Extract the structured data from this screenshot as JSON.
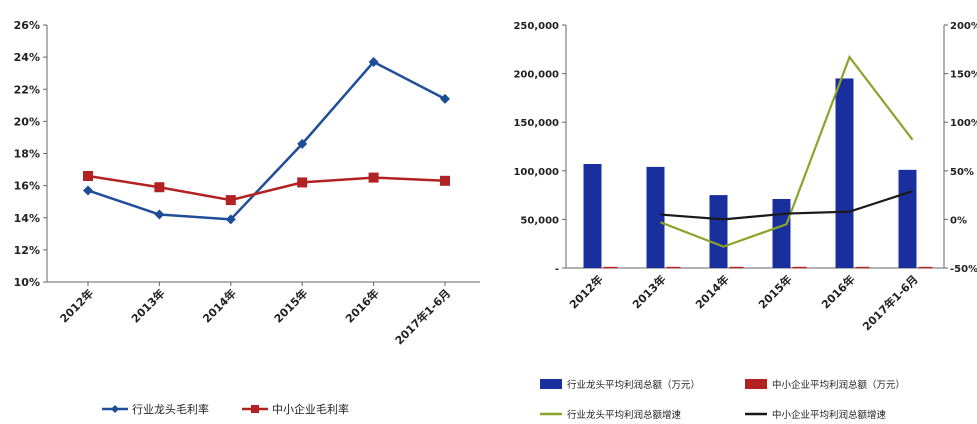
{
  "chart_data": [
    {
      "type": "line",
      "categories": [
        "2012年",
        "2013年",
        "2014年",
        "2015年",
        "2016年",
        "2017年1-6月"
      ],
      "series": [
        {
          "name": "行业龙头毛利率",
          "values": [
            15.7,
            14.2,
            13.9,
            18.6,
            23.7,
            21.4
          ],
          "color": "#1f4e99",
          "marker": "diamond"
        },
        {
          "name": "中小企业毛利率",
          "values": [
            16.6,
            15.9,
            15.1,
            16.2,
            16.5,
            16.3
          ],
          "color": "#b22222",
          "marker": "square"
        }
      ],
      "ylim": [
        10,
        26
      ],
      "yticks": [
        "10%",
        "12%",
        "14%",
        "16%",
        "18%",
        "20%",
        "22%",
        "24%",
        "26%"
      ],
      "grid": false,
      "legend": "bottom"
    },
    {
      "type": "bar+line",
      "categories": [
        "2012年",
        "2013年",
        "2014年",
        "2015年",
        "2016年",
        "2017年1-6月"
      ],
      "bar_series": [
        {
          "name": "行业龙头平均利润总额（万元）",
          "values": [
            107000,
            104000,
            75000,
            71000,
            195000,
            101000
          ],
          "color": "#1a2f9e"
        },
        {
          "name": "中小企业平均利润总额（万元）",
          "values": [
            1200,
            1200,
            1200,
            1200,
            1200,
            1200
          ],
          "color": "#b22222"
        }
      ],
      "line_series": [
        {
          "name": "行业龙头平均利润总额增速",
          "x_indices": [
            1,
            2,
            3,
            4,
            5
          ],
          "values": [
            -3,
            -28,
            -5,
            167,
            82
          ],
          "color": "#8aa42a"
        },
        {
          "name": "中小企业平均利润总额增速",
          "x_indices": [
            1,
            2,
            3,
            4,
            5
          ],
          "values": [
            5,
            0,
            6,
            8,
            29
          ],
          "color": "#1a1a1a"
        }
      ],
      "ylim_left": [
        0,
        250000
      ],
      "yticks_left": [
        "-",
        "50,000",
        "100,000",
        "150,000",
        "200,000",
        "250,000"
      ],
      "ylim_right": [
        -50,
        200
      ],
      "yticks_right": [
        "-50%",
        "0%",
        "50%",
        "100%",
        "150%",
        "200%"
      ],
      "grid": false,
      "legend": "bottom"
    }
  ]
}
